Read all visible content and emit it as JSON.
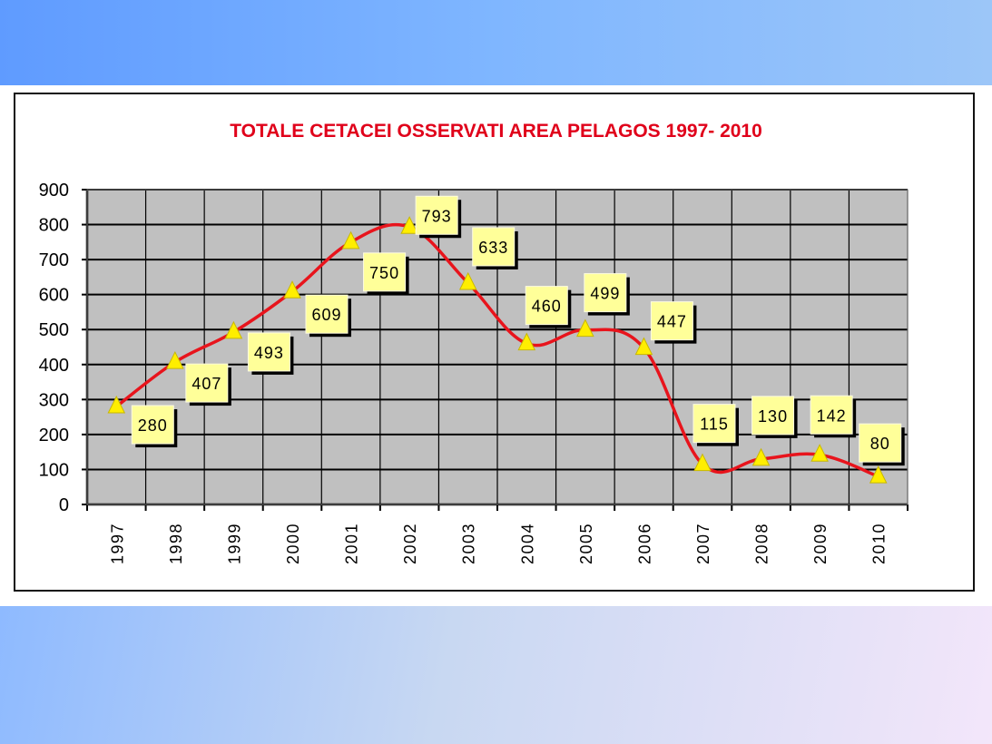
{
  "chart_data": {
    "type": "line",
    "title": "TOTALE CETACEI OSSERVATI  AREA PELAGOS 1997- 2010",
    "categories": [
      "1997",
      "1998",
      "1999",
      "2000",
      "2001",
      "2002",
      "2003",
      "2004",
      "2005",
      "2006",
      "2007",
      "2008",
      "2009",
      "2010"
    ],
    "values": [
      280,
      407,
      493,
      609,
      750,
      793,
      633,
      460,
      499,
      447,
      115,
      130,
      142,
      80
    ],
    "labels": [
      "280",
      "407",
      "493",
      "609",
      "750",
      "793",
      "633",
      "460",
      "499",
      "447",
      "115",
      "130",
      "142",
      "80"
    ],
    "yticks": [
      "0",
      "100",
      "200",
      "300",
      "400",
      "500",
      "600",
      "700",
      "800",
      "900"
    ],
    "ylim": [
      0,
      900
    ],
    "grid": true,
    "marker": "triangle",
    "colors": {
      "line": "#e8141c",
      "marker": "#ffee00",
      "label_bg": "#ffff99",
      "plot_bg": "#c0c0c0",
      "title": "#e0001a"
    }
  }
}
